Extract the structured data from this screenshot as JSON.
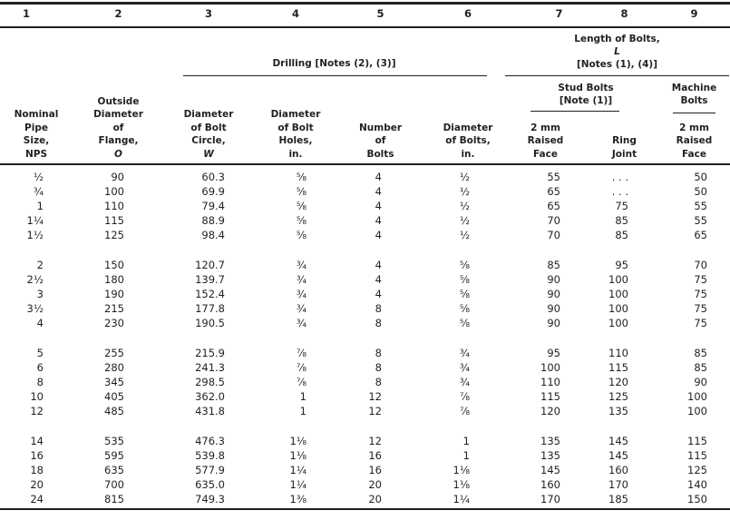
{
  "colors": {
    "text": "#231f20",
    "rule": "#231f20",
    "background": "#ffffff"
  },
  "table": {
    "column_numbers": [
      "1",
      "2",
      "3",
      "4",
      "5",
      "6",
      "7",
      "8",
      "9"
    ],
    "span_headers": {
      "drilling": "Drilling [Notes (2), (3)]",
      "length_of_bolts": [
        "Length of Bolts,",
        "L",
        "[Notes (1), (4)]"
      ],
      "stud_bolts": [
        "Stud Bolts",
        "[Note (1)]"
      ],
      "machine_bolts": [
        "Machine",
        "Bolts"
      ]
    },
    "column_headers": {
      "nps": [
        "Nominal",
        "Pipe",
        "Size,",
        "NPS"
      ],
      "flange_od": [
        "Outside",
        "Diameter",
        "of",
        "Flange,"
      ],
      "flange_od_symbol": "O",
      "bolt_circle": [
        "Diameter",
        "of Bolt",
        "Circle,"
      ],
      "bolt_circle_symbol": "W",
      "bolt_holes": [
        "Diameter",
        "of Bolt",
        "Holes,",
        "in."
      ],
      "number_of_bolts": [
        "Number",
        "of",
        "Bolts"
      ],
      "bolt_diameter": [
        "Diameter",
        "of Bolts,",
        "in."
      ],
      "stud_raised_face": [
        "2 mm",
        "Raised",
        "Face"
      ],
      "ring_joint": [
        "Ring",
        "Joint"
      ],
      "machine_raised_face": [
        "2 mm",
        "Raised",
        "Face"
      ]
    },
    "groups": [
      [
        [
          "½",
          "90",
          "60.3",
          "⅝",
          "4",
          "½",
          "55",
          ". . .",
          "50"
        ],
        [
          "¾",
          "100",
          "69.9",
          "⅝",
          "4",
          "½",
          "65",
          ". . .",
          "50"
        ],
        [
          "1",
          "110",
          "79.4",
          "⅝",
          "4",
          "½",
          "65",
          "75",
          "55"
        ],
        [
          "1¼",
          "115",
          "88.9",
          "⅝",
          "4",
          "½",
          "70",
          "85",
          "55"
        ],
        [
          "1½",
          "125",
          "98.4",
          "⅝",
          "4",
          "½",
          "70",
          "85",
          "65"
        ]
      ],
      [
        [
          "2",
          "150",
          "120.7",
          "¾",
          "4",
          "⅝",
          "85",
          "95",
          "70"
        ],
        [
          "2½",
          "180",
          "139.7",
          "¾",
          "4",
          "⅝",
          "90",
          "100",
          "75"
        ],
        [
          "3",
          "190",
          "152.4",
          "¾",
          "4",
          "⅝",
          "90",
          "100",
          "75"
        ],
        [
          "3½",
          "215",
          "177.8",
          "¾",
          "8",
          "⅝",
          "90",
          "100",
          "75"
        ],
        [
          "4",
          "230",
          "190.5",
          "¾",
          "8",
          "⅝",
          "90",
          "100",
          "75"
        ]
      ],
      [
        [
          "5",
          "255",
          "215.9",
          "⅞",
          "8",
          "¾",
          "95",
          "110",
          "85"
        ],
        [
          "6",
          "280",
          "241.3",
          "⅞",
          "8",
          "¾",
          "100",
          "115",
          "85"
        ],
        [
          "8",
          "345",
          "298.5",
          "⅞",
          "8",
          "¾",
          "110",
          "120",
          "90"
        ],
        [
          "10",
          "405",
          "362.0",
          "1",
          "12",
          "⅞",
          "115",
          "125",
          "100"
        ],
        [
          "12",
          "485",
          "431.8",
          "1",
          "12",
          "⅞",
          "120",
          "135",
          "100"
        ]
      ],
      [
        [
          "14",
          "535",
          "476.3",
          "1⅛",
          "12",
          "1",
          "135",
          "145",
          "115"
        ],
        [
          "16",
          "595",
          "539.8",
          "1⅛",
          "16",
          "1",
          "135",
          "145",
          "115"
        ],
        [
          "18",
          "635",
          "577.9",
          "1¼",
          "16",
          "1⅛",
          "145",
          "160",
          "125"
        ],
        [
          "20",
          "700",
          "635.0",
          "1¼",
          "20",
          "1⅛",
          "160",
          "170",
          "140"
        ],
        [
          "24",
          "815",
          "749.3",
          "1⅜",
          "20",
          "1¼",
          "170",
          "185",
          "150"
        ]
      ]
    ]
  }
}
